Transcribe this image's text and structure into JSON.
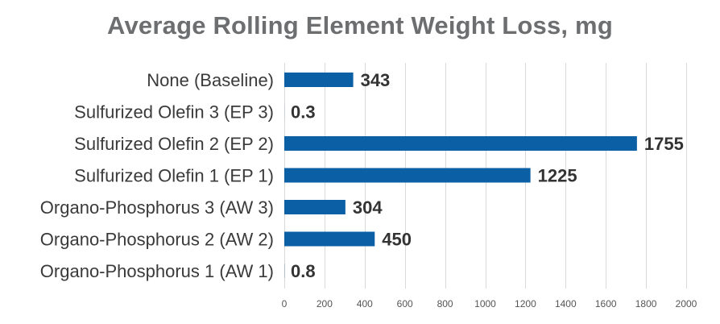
{
  "chart_data": {
    "type": "bar",
    "orientation": "horizontal",
    "title": "Average Rolling Element Weight Loss, mg",
    "xlabel": "",
    "ylabel": "",
    "categories": [
      "None (Baseline)",
      "Sulfurized Olefin 3 (EP 3)",
      "Sulfurized Olefin 2 (EP 2)",
      "Sulfurized Olefin 1 (EP 1)",
      "Organo-Phosphorus 3 (AW 3)",
      "Organo-Phosphorus 2 (AW 2)",
      "Organo-Phosphorus 1 (AW 1)"
    ],
    "values": [
      343,
      0.3,
      1755,
      1225,
      304,
      450,
      0.8
    ],
    "value_labels": [
      "343",
      "0.3",
      "1755",
      "1225",
      "304",
      "450",
      "0.8"
    ],
    "xlim": [
      0,
      2000
    ],
    "xticks": [
      0,
      200,
      400,
      600,
      800,
      1000,
      1200,
      1400,
      1600,
      1800,
      2000
    ],
    "xtick_labels": [
      "0",
      "200",
      "400",
      "600",
      "800",
      "1000",
      "1200",
      "1400",
      "1600",
      "1800",
      "2000"
    ],
    "grid": "vertical",
    "legend": "none",
    "colors": {
      "bar": "#0b5fa5",
      "title": "#6d6e70",
      "grid": "#d9d9d9"
    }
  }
}
